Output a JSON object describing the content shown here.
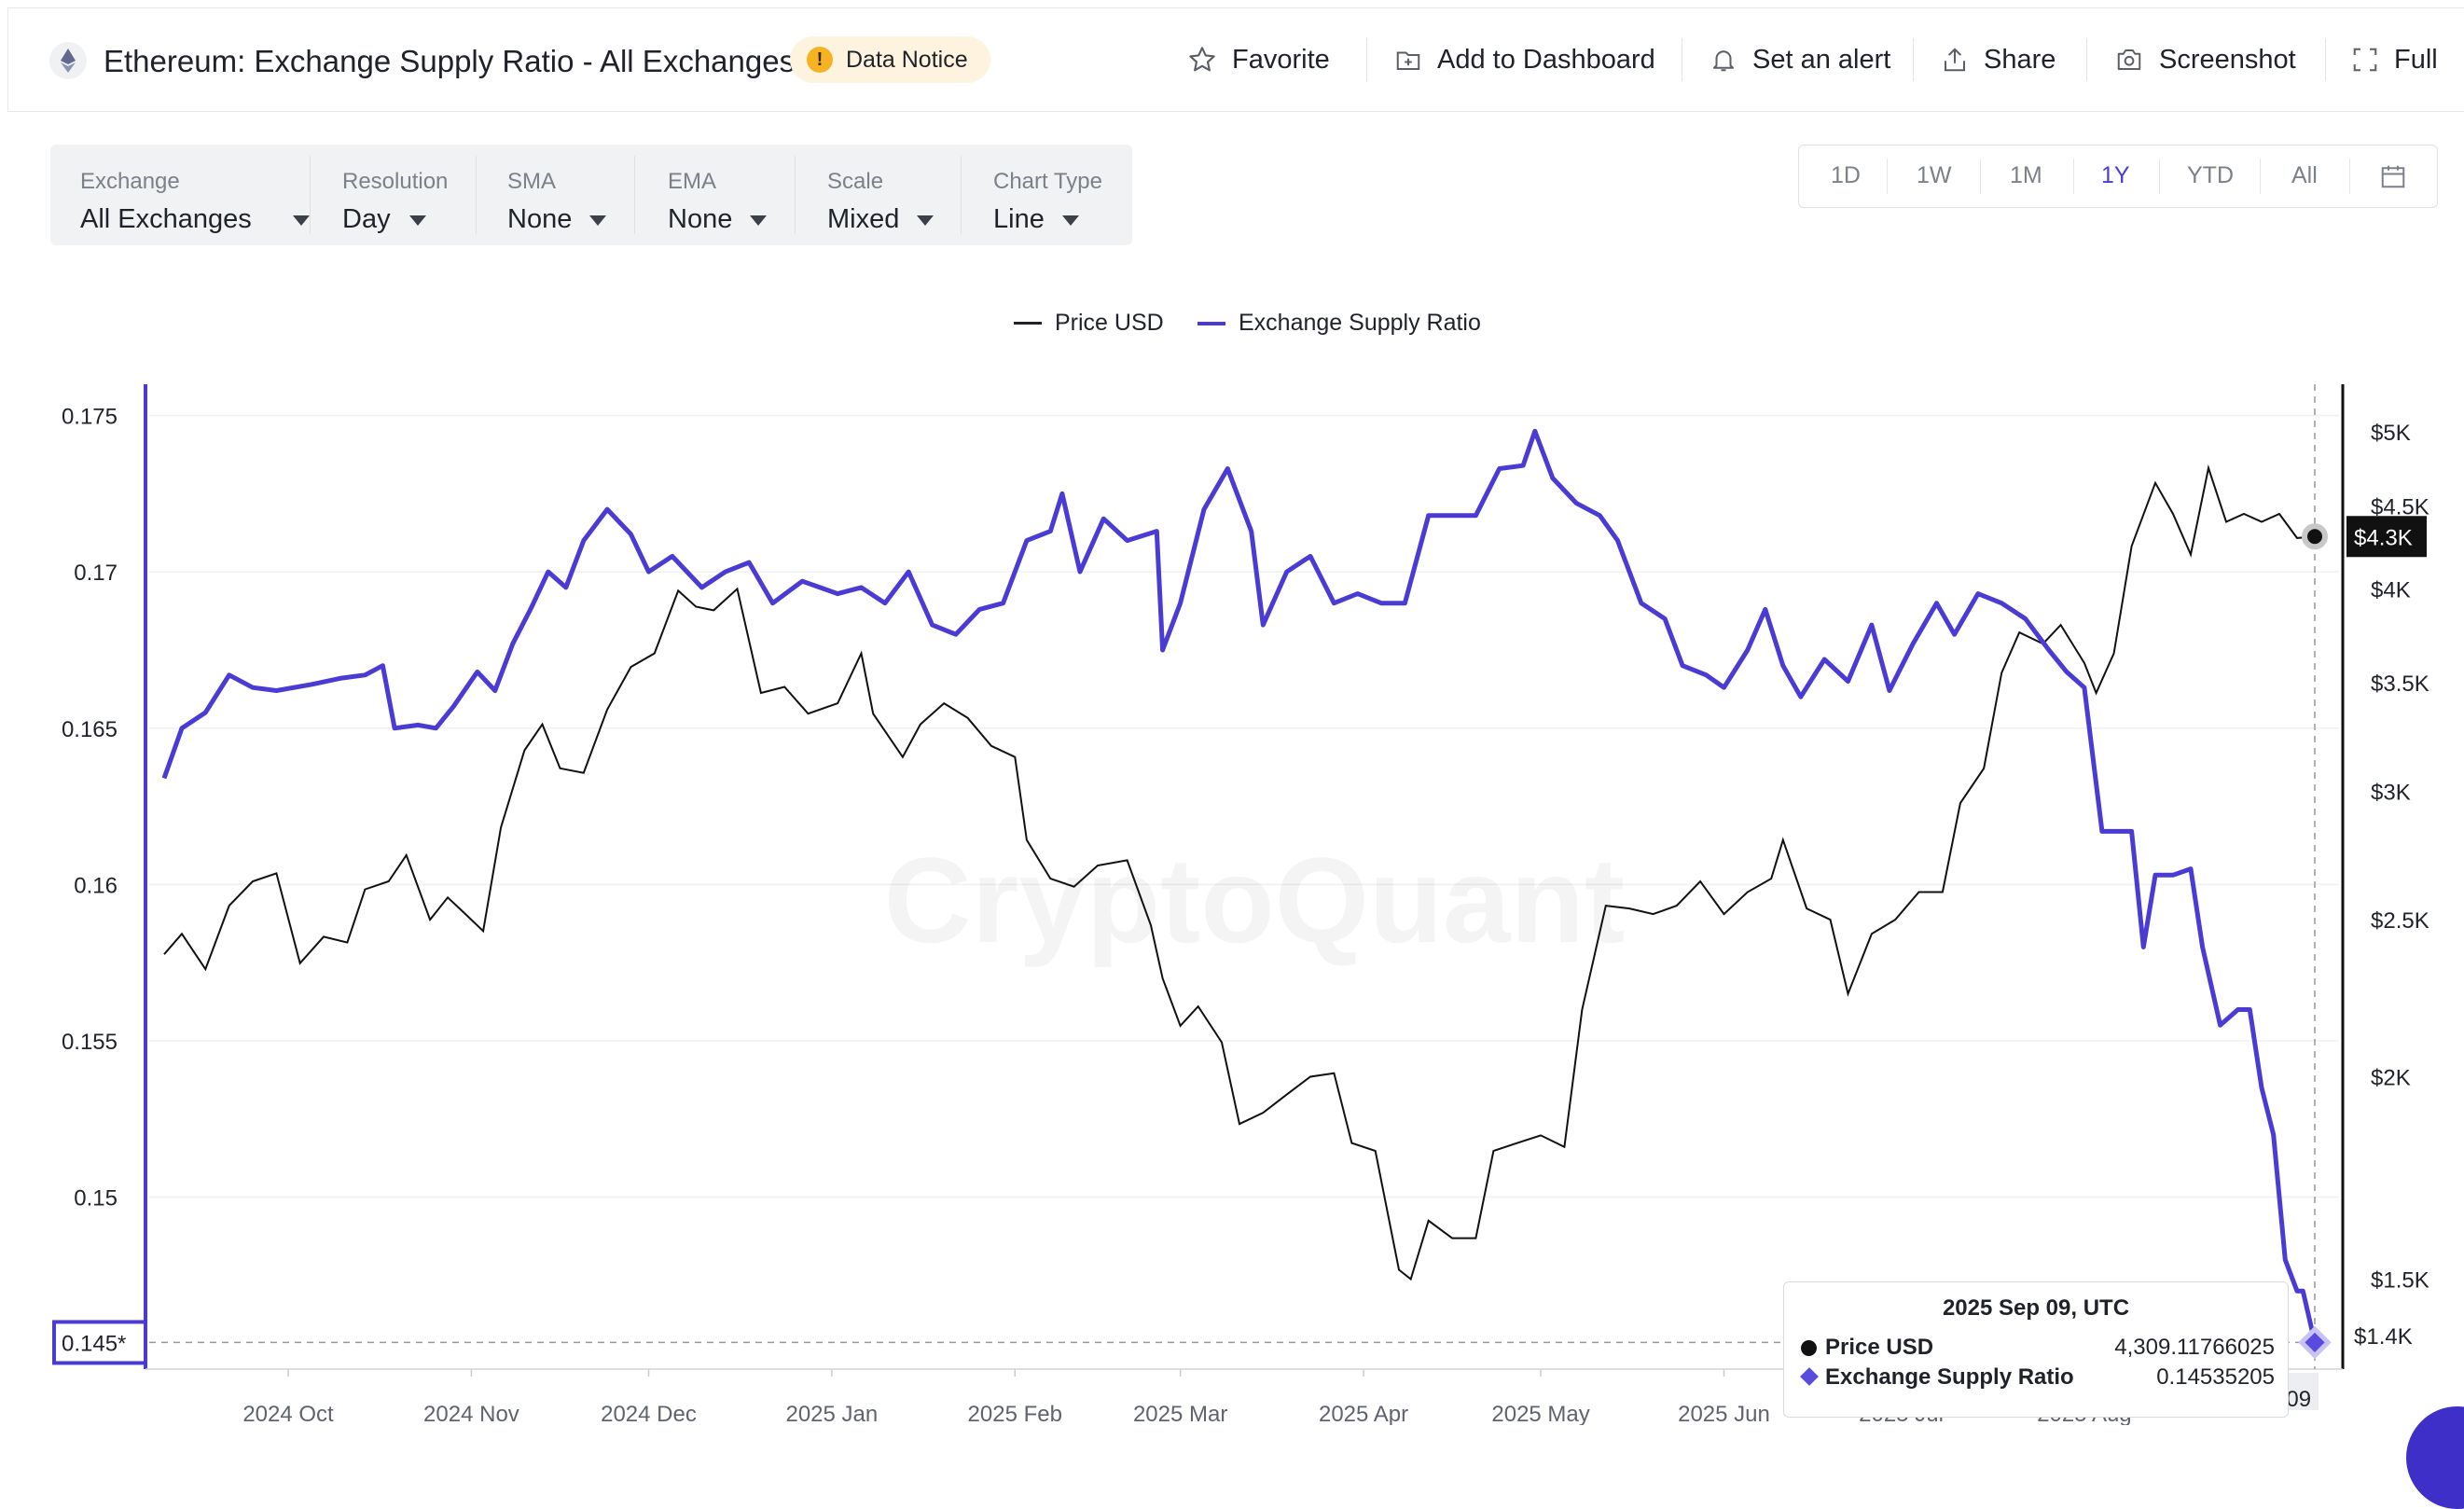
{
  "header": {
    "title": "Ethereum: Exchange Supply Ratio - All Exchanges",
    "notice_label": "Data Notice",
    "notice_icon": "!",
    "actions": [
      {
        "label": "Favorite",
        "icon": "star-icon"
      },
      {
        "label": "Add to Dashboard",
        "icon": "add-to-dashboard-icon"
      },
      {
        "label": "Set an alert",
        "icon": "bell-icon"
      },
      {
        "label": "Share",
        "icon": "share-icon"
      },
      {
        "label": "Screenshot",
        "icon": "camera-icon"
      },
      {
        "label": "Full",
        "icon": "fullscreen-icon"
      }
    ]
  },
  "controls": [
    {
      "label": "Exchange",
      "value": "All Exchanges"
    },
    {
      "label": "Resolution",
      "value": "Day"
    },
    {
      "label": "SMA",
      "value": "None"
    },
    {
      "label": "EMA",
      "value": "None"
    },
    {
      "label": "Scale",
      "value": "Mixed"
    },
    {
      "label": "Chart Type",
      "value": "Line"
    }
  ],
  "ranges": {
    "items": [
      "1D",
      "1W",
      "1M",
      "1Y",
      "YTD",
      "All"
    ],
    "active": "1Y",
    "calendar_icon": "calendar-icon"
  },
  "watermark": "CryptoQuant",
  "colors": {
    "ratio": "#4a3bd4",
    "price": "#111111",
    "accent": "#4a3bd4"
  },
  "chart_data": {
    "type": "line",
    "legend": [
      "Price USD",
      "Exchange Supply Ratio"
    ],
    "legend_position": "top-center",
    "x_labels": [
      "2024 Oct",
      "2024 Nov",
      "2024 Dec",
      "2025 Jan",
      "2025 Feb",
      "2025 Mar",
      "2025 Apr",
      "2025 May",
      "2025 Jun",
      "2025 Jul",
      "2025 Aug"
    ],
    "left_axis": {
      "series": "Exchange Supply Ratio",
      "ticks": [
        "0.175",
        "0.17",
        "0.165",
        "0.16",
        "0.155",
        "0.15"
      ],
      "range": [
        0.1445,
        0.176
      ],
      "current_label": "0.145*"
    },
    "right_axis": {
      "series": "Price USD",
      "scale": "log",
      "ticks": [
        "$5K",
        "$4.5K",
        "$4K",
        "$3.5K",
        "$3K",
        "$2.5K",
        "$2K",
        "$1.5K"
      ],
      "current_label": "$4.3K",
      "bottom_label": "$1.4K"
    },
    "x_range": [
      "2024-09-10",
      "2025-09-09"
    ],
    "series": [
      {
        "name": "Exchange Supply Ratio",
        "axis": "left",
        "points": [
          [
            "2024-09-10",
            0.1634
          ],
          [
            "2024-09-13",
            0.165
          ],
          [
            "2024-09-17",
            0.1655
          ],
          [
            "2024-09-21",
            0.1667
          ],
          [
            "2024-09-25",
            0.1663
          ],
          [
            "2024-09-29",
            0.1662
          ],
          [
            "2024-10-05",
            0.1664
          ],
          [
            "2024-10-10",
            0.1666
          ],
          [
            "2024-10-14",
            0.1667
          ],
          [
            "2024-10-17",
            0.167
          ],
          [
            "2024-10-19",
            0.165
          ],
          [
            "2024-10-23",
            0.1651
          ],
          [
            "2024-10-26",
            0.165
          ],
          [
            "2024-10-29",
            0.1657
          ],
          [
            "2024-11-02",
            0.1668
          ],
          [
            "2024-11-05",
            0.1662
          ],
          [
            "2024-11-08",
            0.1677
          ],
          [
            "2024-11-11",
            0.1688
          ],
          [
            "2024-11-14",
            0.17
          ],
          [
            "2024-11-17",
            0.1695
          ],
          [
            "2024-11-20",
            0.171
          ],
          [
            "2024-11-24",
            0.172
          ],
          [
            "2024-11-28",
            0.1712
          ],
          [
            "2024-12-01",
            0.17
          ],
          [
            "2024-12-05",
            0.1705
          ],
          [
            "2024-12-10",
            0.1695
          ],
          [
            "2024-12-14",
            0.17
          ],
          [
            "2024-12-18",
            0.1703
          ],
          [
            "2024-12-22",
            0.169
          ],
          [
            "2024-12-27",
            0.1697
          ],
          [
            "2025-01-02",
            0.1693
          ],
          [
            "2025-01-06",
            0.1695
          ],
          [
            "2025-01-10",
            0.169
          ],
          [
            "2025-01-14",
            0.17
          ],
          [
            "2025-01-18",
            0.1683
          ],
          [
            "2025-01-22",
            0.168
          ],
          [
            "2025-01-26",
            0.1688
          ],
          [
            "2025-01-30",
            0.169
          ],
          [
            "2025-02-03",
            0.171
          ],
          [
            "2025-02-07",
            0.1713
          ],
          [
            "2025-02-09",
            0.1725
          ],
          [
            "2025-02-12",
            0.17
          ],
          [
            "2025-02-16",
            0.1717
          ],
          [
            "2025-02-20",
            0.171
          ],
          [
            "2025-02-25",
            0.1713
          ],
          [
            "2025-02-26",
            0.1675
          ],
          [
            "2025-03-01",
            0.169
          ],
          [
            "2025-03-05",
            0.172
          ],
          [
            "2025-03-09",
            0.1733
          ],
          [
            "2025-03-13",
            0.1713
          ],
          [
            "2025-03-15",
            0.1683
          ],
          [
            "2025-03-19",
            0.17
          ],
          [
            "2025-03-23",
            0.1705
          ],
          [
            "2025-03-27",
            0.169
          ],
          [
            "2025-03-31",
            0.1693
          ],
          [
            "2025-04-04",
            0.169
          ],
          [
            "2025-04-08",
            0.169
          ],
          [
            "2025-04-12",
            0.1718
          ],
          [
            "2025-04-16",
            0.1718
          ],
          [
            "2025-04-20",
            0.1718
          ],
          [
            "2025-04-24",
            0.1733
          ],
          [
            "2025-04-28",
            0.1734
          ],
          [
            "2025-04-30",
            0.1745
          ],
          [
            "2025-05-03",
            0.173
          ],
          [
            "2025-05-07",
            0.1722
          ],
          [
            "2025-05-11",
            0.1718
          ],
          [
            "2025-05-14",
            0.171
          ],
          [
            "2025-05-18",
            0.169
          ],
          [
            "2025-05-22",
            0.1685
          ],
          [
            "2025-05-25",
            0.167
          ],
          [
            "2025-05-29",
            0.1667
          ],
          [
            "2025-06-01",
            0.1663
          ],
          [
            "2025-06-05",
            0.1675
          ],
          [
            "2025-06-08",
            0.1688
          ],
          [
            "2025-06-11",
            0.167
          ],
          [
            "2025-06-14",
            0.166
          ],
          [
            "2025-06-18",
            0.1672
          ],
          [
            "2025-06-22",
            0.1665
          ],
          [
            "2025-06-26",
            0.1683
          ],
          [
            "2025-06-29",
            0.1662
          ],
          [
            "2025-07-03",
            0.1677
          ],
          [
            "2025-07-07",
            0.169
          ],
          [
            "2025-07-10",
            0.168
          ],
          [
            "2025-07-14",
            0.1693
          ],
          [
            "2025-07-18",
            0.169
          ],
          [
            "2025-07-22",
            0.1685
          ],
          [
            "2025-07-26",
            0.1675
          ],
          [
            "2025-07-29",
            0.1668
          ],
          [
            "2025-08-01",
            0.1663
          ],
          [
            "2025-08-04",
            0.1617
          ],
          [
            "2025-08-07",
            0.1617
          ],
          [
            "2025-08-09",
            0.1617
          ],
          [
            "2025-08-11",
            0.158
          ],
          [
            "2025-08-13",
            0.1603
          ],
          [
            "2025-08-16",
            0.1603
          ],
          [
            "2025-08-19",
            0.1605
          ],
          [
            "2025-08-21",
            0.158
          ],
          [
            "2025-08-24",
            0.1555
          ],
          [
            "2025-08-27",
            0.156
          ],
          [
            "2025-08-29",
            0.156
          ],
          [
            "2025-08-31",
            0.1535
          ],
          [
            "2025-09-02",
            0.152
          ],
          [
            "2025-09-04",
            0.148
          ],
          [
            "2025-09-06",
            0.147
          ],
          [
            "2025-09-07",
            0.147
          ],
          [
            "2025-09-09",
            0.14535205
          ]
        ]
      },
      {
        "name": "Price USD",
        "axis": "right",
        "points": [
          [
            "2024-09-10",
            2380
          ],
          [
            "2024-09-13",
            2450
          ],
          [
            "2024-09-17",
            2330
          ],
          [
            "2024-09-21",
            2550
          ],
          [
            "2024-09-25",
            2640
          ],
          [
            "2024-09-29",
            2670
          ],
          [
            "2024-10-03",
            2350
          ],
          [
            "2024-10-07",
            2440
          ],
          [
            "2024-10-11",
            2420
          ],
          [
            "2024-10-14",
            2610
          ],
          [
            "2024-10-18",
            2640
          ],
          [
            "2024-10-21",
            2740
          ],
          [
            "2024-10-25",
            2500
          ],
          [
            "2024-10-28",
            2580
          ],
          [
            "2024-10-31",
            2520
          ],
          [
            "2024-11-03",
            2460
          ],
          [
            "2024-11-06",
            2850
          ],
          [
            "2024-11-10",
            3180
          ],
          [
            "2024-11-13",
            3300
          ],
          [
            "2024-11-16",
            3100
          ],
          [
            "2024-11-20",
            3080
          ],
          [
            "2024-11-24",
            3370
          ],
          [
            "2024-11-28",
            3580
          ],
          [
            "2024-12-02",
            3650
          ],
          [
            "2024-12-06",
            3990
          ],
          [
            "2024-12-09",
            3900
          ],
          [
            "2024-12-12",
            3880
          ],
          [
            "2024-12-16",
            4000
          ],
          [
            "2024-12-20",
            3450
          ],
          [
            "2024-12-24",
            3480
          ],
          [
            "2024-12-28",
            3350
          ],
          [
            "2025-01-02",
            3400
          ],
          [
            "2025-01-06",
            3650
          ],
          [
            "2025-01-08",
            3350
          ],
          [
            "2025-01-13",
            3150
          ],
          [
            "2025-01-16",
            3300
          ],
          [
            "2025-01-20",
            3400
          ],
          [
            "2025-01-24",
            3330
          ],
          [
            "2025-01-28",
            3200
          ],
          [
            "2025-02-01",
            3150
          ],
          [
            "2025-02-03",
            2800
          ],
          [
            "2025-02-07",
            2650
          ],
          [
            "2025-02-11",
            2620
          ],
          [
            "2025-02-15",
            2700
          ],
          [
            "2025-02-20",
            2720
          ],
          [
            "2025-02-24",
            2480
          ],
          [
            "2025-02-26",
            2300
          ],
          [
            "2025-03-01",
            2150
          ],
          [
            "2025-03-04",
            2210
          ],
          [
            "2025-03-08",
            2100
          ],
          [
            "2025-03-11",
            1870
          ],
          [
            "2025-03-15",
            1900
          ],
          [
            "2025-03-19",
            1950
          ],
          [
            "2025-03-23",
            2000
          ],
          [
            "2025-03-27",
            2010
          ],
          [
            "2025-03-30",
            1820
          ],
          [
            "2025-04-03",
            1800
          ],
          [
            "2025-04-07",
            1520
          ],
          [
            "2025-04-09",
            1500
          ],
          [
            "2025-04-12",
            1630
          ],
          [
            "2025-04-16",
            1590
          ],
          [
            "2025-04-20",
            1590
          ],
          [
            "2025-04-23",
            1800
          ],
          [
            "2025-04-27",
            1820
          ],
          [
            "2025-05-01",
            1840
          ],
          [
            "2025-05-05",
            1810
          ],
          [
            "2025-05-08",
            2200
          ],
          [
            "2025-05-12",
            2550
          ],
          [
            "2025-05-16",
            2540
          ],
          [
            "2025-05-20",
            2520
          ],
          [
            "2025-05-24",
            2550
          ],
          [
            "2025-05-28",
            2640
          ],
          [
            "2025-06-01",
            2520
          ],
          [
            "2025-06-05",
            2600
          ],
          [
            "2025-06-09",
            2650
          ],
          [
            "2025-06-11",
            2800
          ],
          [
            "2025-06-15",
            2540
          ],
          [
            "2025-06-19",
            2500
          ],
          [
            "2025-06-22",
            2250
          ],
          [
            "2025-06-26",
            2450
          ],
          [
            "2025-06-30",
            2500
          ],
          [
            "2025-07-04",
            2600
          ],
          [
            "2025-07-08",
            2600
          ],
          [
            "2025-07-11",
            2950
          ],
          [
            "2025-07-15",
            3100
          ],
          [
            "2025-07-18",
            3550
          ],
          [
            "2025-07-21",
            3760
          ],
          [
            "2025-07-25",
            3700
          ],
          [
            "2025-07-28",
            3800
          ],
          [
            "2025-08-01",
            3600
          ],
          [
            "2025-08-03",
            3450
          ],
          [
            "2025-08-06",
            3650
          ],
          [
            "2025-08-09",
            4250
          ],
          [
            "2025-08-13",
            4650
          ],
          [
            "2025-08-16",
            4450
          ],
          [
            "2025-08-19",
            4200
          ],
          [
            "2025-08-22",
            4750
          ],
          [
            "2025-08-25",
            4400
          ],
          [
            "2025-08-28",
            4450
          ],
          [
            "2025-08-31",
            4400
          ],
          [
            "2025-09-03",
            4450
          ],
          [
            "2025-09-06",
            4300
          ],
          [
            "2025-09-09",
            4309.11766025
          ]
        ]
      }
    ],
    "tooltip": {
      "date": "2025 Sep 09, UTC",
      "price_label": "Price USD",
      "price_value": "4,309.11766025",
      "ratio_label": "Exchange Supply Ratio",
      "ratio_value": "0.14535205",
      "x_badge": "2025 Sep 09"
    }
  }
}
